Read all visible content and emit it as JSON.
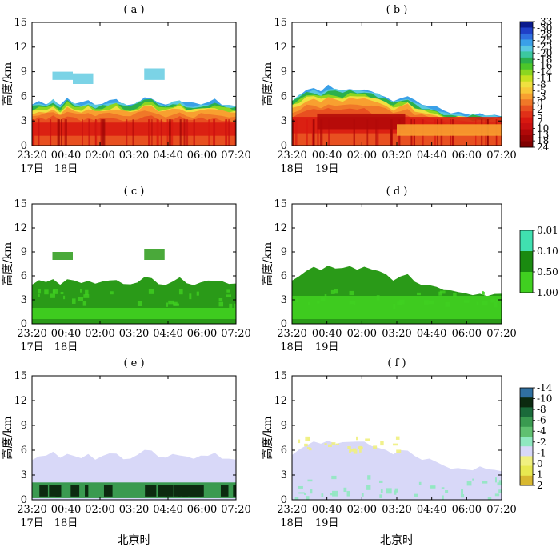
{
  "chart_data": [
    {
      "type": "heatmap",
      "panel_label": "( a )",
      "ylabel": "高度/km",
      "ylim": [
        0,
        15
      ],
      "yticks": [
        0,
        3,
        6,
        9,
        12,
        15
      ],
      "xticks": [
        "23:20",
        "00:40",
        "02:00",
        "03:20",
        "04:40",
        "06:00",
        "07:20"
      ],
      "date_labels": [
        "17日",
        "18日"
      ],
      "xlabel": "",
      "quantity": "reflectivity",
      "top_profile": [
        5.0,
        5.4,
        5.2,
        5.6,
        5.0,
        5.8,
        5.3,
        5.1,
        5.5,
        5.0,
        5.2,
        5.4,
        5.6,
        5.1,
        5.0,
        5.3,
        5.8,
        5.9,
        5.2,
        5.0,
        5.4,
        5.6,
        5.1,
        5.0,
        5.2,
        5.3,
        5.5,
        5.1,
        5.0,
        4.8
      ],
      "colorbar": "reflectivity"
    },
    {
      "type": "heatmap",
      "panel_label": "( b )",
      "ylabel": "高度/km",
      "ylim": [
        0,
        15
      ],
      "yticks": [
        0,
        3,
        6,
        9,
        12,
        15
      ],
      "xticks": [
        "23:20",
        "00:40",
        "02:00",
        "03:20",
        "04:40",
        "06:00",
        "07:20"
      ],
      "date_labels": [
        "18日",
        "19日"
      ],
      "xlabel": "",
      "quantity": "reflectivity",
      "top_profile": [
        5.6,
        6.2,
        6.8,
        7.0,
        6.6,
        7.2,
        7.0,
        6.8,
        7.1,
        6.9,
        7.0,
        6.7,
        6.4,
        6.0,
        5.6,
        5.8,
        6.1,
        5.4,
        5.0,
        4.8,
        4.6,
        4.2,
        4.0,
        4.0,
        3.9,
        3.8,
        3.8,
        3.7,
        3.7,
        3.6
      ],
      "colorbar": "reflectivity"
    },
    {
      "type": "heatmap",
      "panel_label": "( c )",
      "ylabel": "高度/km",
      "ylim": [
        0,
        15
      ],
      "yticks": [
        0,
        3,
        6,
        9,
        12,
        15
      ],
      "xticks": [
        "23:20",
        "00:40",
        "02:00",
        "03:20",
        "04:40",
        "06:00",
        "07:20"
      ],
      "date_labels": [
        "17日",
        "18日"
      ],
      "xlabel": "",
      "quantity": "probability",
      "top_profile": [
        5.0,
        5.4,
        5.2,
        5.6,
        5.0,
        5.8,
        5.3,
        5.1,
        5.5,
        5.0,
        5.2,
        5.4,
        5.6,
        5.1,
        5.0,
        5.3,
        5.8,
        5.9,
        5.2,
        5.0,
        5.4,
        5.6,
        5.1,
        5.0,
        5.2,
        5.3,
        5.5,
        5.1,
        5.0,
        4.8
      ],
      "colorbar": "probability"
    },
    {
      "type": "heatmap",
      "panel_label": "( d )",
      "ylabel": "高度/km",
      "ylim": [
        0,
        15
      ],
      "yticks": [
        0,
        3,
        6,
        9,
        12,
        15
      ],
      "xticks": [
        "23:20",
        "00:40",
        "02:00",
        "03:20",
        "04:40",
        "06:00",
        "07:20"
      ],
      "date_labels": [
        "18日",
        "19日"
      ],
      "xlabel": "",
      "quantity": "probability",
      "top_profile": [
        5.6,
        6.2,
        6.8,
        7.0,
        6.6,
        7.2,
        7.0,
        6.8,
        7.1,
        6.9,
        7.0,
        6.7,
        6.4,
        6.0,
        5.6,
        5.8,
        6.1,
        5.4,
        5.0,
        4.8,
        4.6,
        4.2,
        4.0,
        4.0,
        3.9,
        3.8,
        3.8,
        3.7,
        3.7,
        3.6
      ],
      "colorbar": "probability"
    },
    {
      "type": "heatmap",
      "panel_label": "( e )",
      "ylabel": "高度/km",
      "ylim": [
        0,
        15
      ],
      "yticks": [
        0,
        3,
        6,
        9,
        12,
        15
      ],
      "xticks": [
        "23:20",
        "00:40",
        "02:00",
        "03:20",
        "04:40",
        "06:00",
        "07:20"
      ],
      "date_labels": [
        "17日",
        "18日"
      ],
      "xlabel": "北京时",
      "quantity": "difference",
      "top_profile": [
        5.0,
        5.4,
        5.2,
        5.6,
        5.0,
        5.8,
        5.3,
        5.1,
        5.5,
        5.0,
        5.2,
        5.4,
        5.6,
        5.1,
        5.0,
        5.3,
        5.8,
        5.9,
        5.2,
        5.0,
        5.4,
        5.6,
        5.1,
        5.0,
        5.2,
        5.3,
        5.5,
        5.1,
        5.0,
        4.8
      ],
      "colorbar": "difference"
    },
    {
      "type": "heatmap",
      "panel_label": "( f )",
      "ylabel": "高度/km",
      "ylim": [
        0,
        15
      ],
      "yticks": [
        0,
        3,
        6,
        9,
        12,
        15
      ],
      "xticks": [
        "23:20",
        "00:40",
        "02:00",
        "03:20",
        "04:40",
        "06:00",
        "07:20"
      ],
      "date_labels": [
        "18日",
        "19日"
      ],
      "xlabel": "北京时",
      "quantity": "difference",
      "top_profile": [
        5.6,
        6.2,
        6.8,
        7.0,
        6.6,
        7.2,
        7.0,
        6.8,
        7.1,
        6.9,
        7.0,
        6.7,
        6.4,
        6.0,
        5.6,
        5.8,
        6.1,
        5.4,
        5.0,
        4.8,
        4.6,
        4.2,
        4.0,
        4.0,
        3.9,
        3.8,
        3.8,
        3.7,
        3.7,
        3.6
      ],
      "colorbar": "difference"
    }
  ],
  "colorbars": {
    "reflectivity": {
      "labels": [
        "-33",
        "-30",
        "-28",
        "-25",
        "-23",
        "-20",
        "-18",
        "-16",
        "-14",
        "-11",
        "-8",
        "-5",
        "-3",
        "0",
        "2",
        "5",
        "7",
        "10",
        "13",
        "18",
        "24"
      ],
      "colors": [
        "#0a1a8c",
        "#1f3fc8",
        "#2f6fe0",
        "#3aa0e8",
        "#5ac8e0",
        "#3cc8a0",
        "#2bb04c",
        "#4cc62a",
        "#8cd620",
        "#c8e020",
        "#f0e040",
        "#f8c838",
        "#f8a030",
        "#f07828",
        "#e85020",
        "#e03018",
        "#d81810",
        "#c81010",
        "#b00808",
        "#980404",
        "#800000"
      ]
    },
    "probability": {
      "labels": [
        "0.01",
        "0.10",
        "0.50",
        "1.00"
      ],
      "colors": [
        "#40e0b0",
        "#1a8a10",
        "#40d020"
      ]
    },
    "difference": {
      "labels": [
        "-14",
        "-10",
        "-8",
        "-6",
        "-4",
        "-2",
        "-1",
        "0",
        "1",
        "2"
      ],
      "colors": [
        "#3070a0",
        "#0c2a10",
        "#1a6a3a",
        "#3a9a50",
        "#60c070",
        "#90e8c0",
        "#d8d8f8",
        "#f0f080",
        "#e8e850",
        "#d8b830"
      ]
    }
  },
  "palette": {
    "prob_dense": "#2a9a18",
    "prob_light": "#40d020",
    "prob_edge": "#40e0b0",
    "diff_bg": "#d8d8f8",
    "diff_low": "#3a9a50",
    "diff_dark": "#0c2a10"
  }
}
